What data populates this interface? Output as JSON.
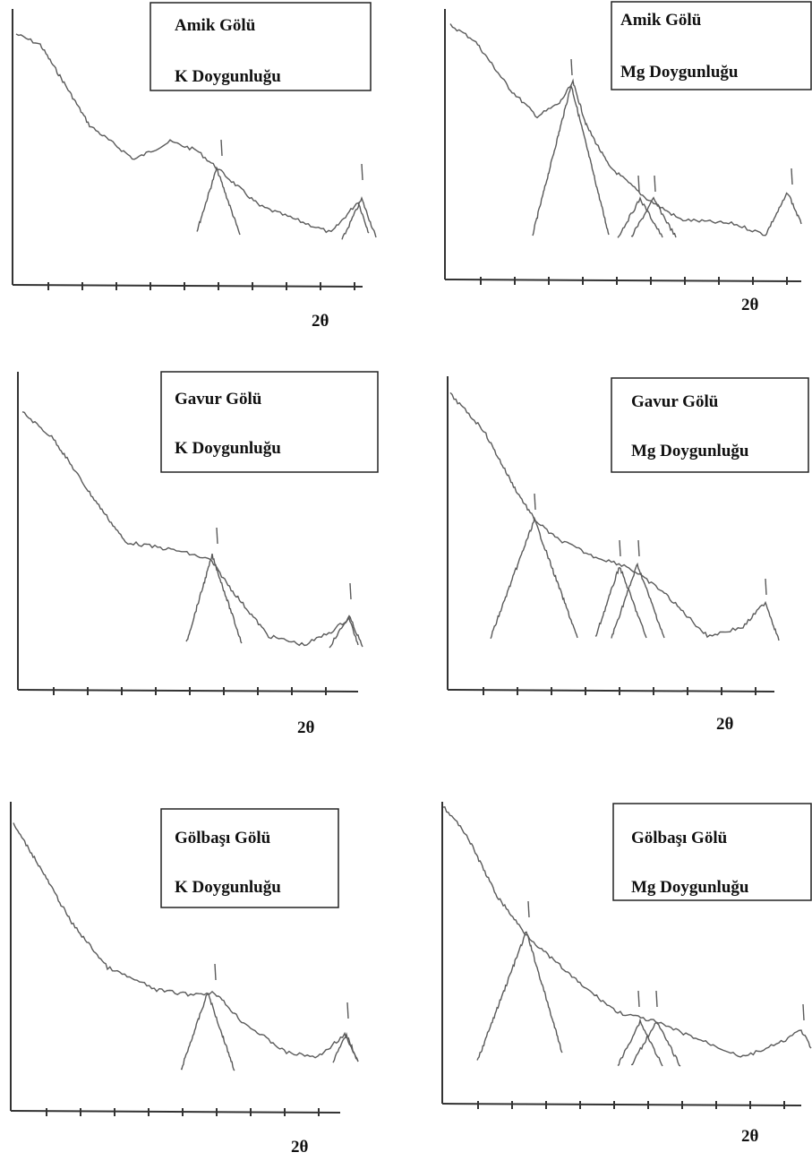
{
  "panels": [
    {
      "title": "Amik Gölü",
      "subtitle": "K Doygunluğu",
      "x_axis_label": "2θ"
    },
    {
      "title": "Amik Gölü",
      "subtitle": "Mg Doygunluğu",
      "x_axis_label": "2θ"
    },
    {
      "title": "Gavur Gölü",
      "subtitle": "K Doygunluğu",
      "x_axis_label": "2θ"
    },
    {
      "title": "Gavur Gölü",
      "subtitle": "Mg Doygunluğu",
      "x_axis_label": "2θ"
    },
    {
      "title": "Gölbaşı Gölü",
      "subtitle": "K Doygunluğu",
      "x_axis_label": "2θ"
    },
    {
      "title": "Gölbaşı Gölü",
      "subtitle": "Mg Doygunluğu",
      "x_axis_label": "2θ"
    }
  ]
}
